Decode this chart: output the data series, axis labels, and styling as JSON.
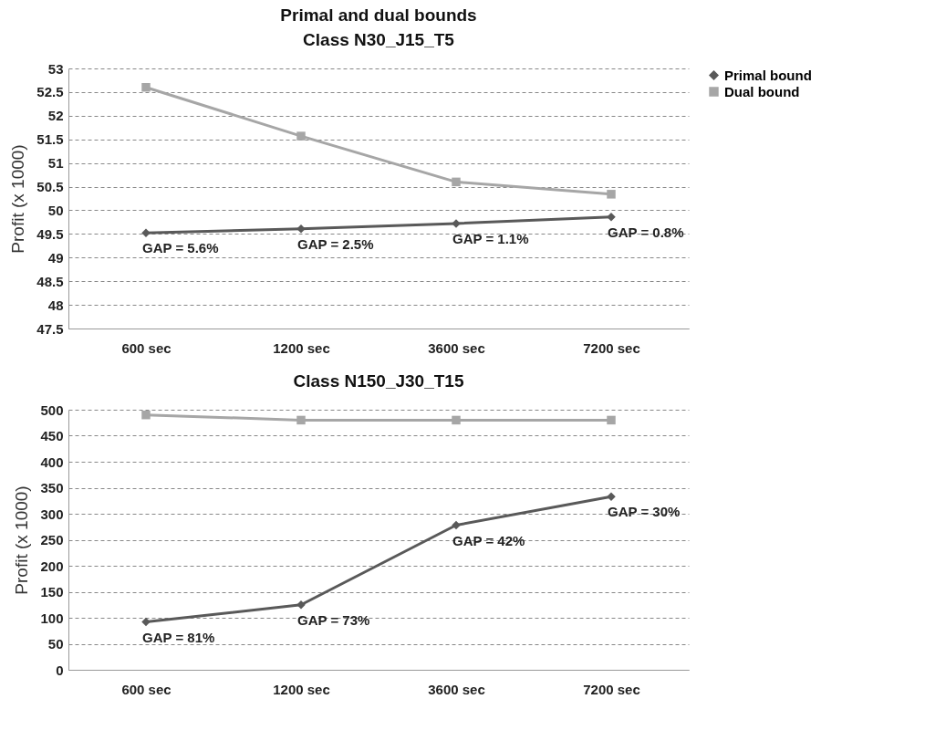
{
  "chart_data": [
    {
      "type": "line",
      "title": "Primal and dual bounds",
      "subtitle": "Class N30_J15_T5",
      "ylabel": "Profit   (x 1000)",
      "categories": [
        "600 sec",
        "1200 sec",
        "3600 sec",
        "7200 sec"
      ],
      "series": [
        {
          "name": "Primal bound",
          "color": "#595959",
          "marker": "diamond",
          "values": [
            49.52,
            49.61,
            49.72,
            49.86
          ]
        },
        {
          "name": "Dual bound",
          "color": "#a6a6a6",
          "marker": "square",
          "values": [
            52.6,
            51.57,
            50.6,
            50.34
          ]
        }
      ],
      "ylim": [
        47.5,
        53
      ],
      "yticks": [
        47.5,
        48,
        48.5,
        49,
        49.5,
        50,
        50.5,
        51,
        51.5,
        52,
        52.5,
        53
      ],
      "grid": "y",
      "legend": "right",
      "line_style": "solid",
      "annotations": [
        {
          "text": "GAP = 5.6%",
          "x": "600 sec",
          "y": 49.52
        },
        {
          "text": "GAP = 2.5%",
          "x": "1200 sec",
          "y": 49.61
        },
        {
          "text": "GAP = 1.1%",
          "x": "3600 sec",
          "y": 49.72
        },
        {
          "text": "GAP = 0.8%",
          "x": "7200 sec",
          "y": 49.86
        }
      ]
    },
    {
      "type": "line",
      "title": "Class N150_J30_T15",
      "ylabel": "Profit   (x 1000)",
      "categories": [
        "600 sec",
        "1200 sec",
        "3600 sec",
        "7200 sec"
      ],
      "series": [
        {
          "color": "#595959",
          "marker": "diamond",
          "values": [
            92,
            125,
            278,
            333
          ]
        },
        {
          "color": "#a6a6a6",
          "marker": "square",
          "values": [
            490,
            480,
            480,
            480
          ]
        }
      ],
      "ylim": [
        0,
        500
      ],
      "yticks": [
        0,
        50,
        100,
        150,
        200,
        250,
        300,
        350,
        400,
        450,
        500
      ],
      "grid": "y",
      "line_style": "solid",
      "annotations": [
        {
          "text": "GAP = 81%",
          "x": "600 sec",
          "y": 92
        },
        {
          "text": "GAP = 73%",
          "x": "1200 sec",
          "y": 125
        },
        {
          "text": "GAP = 42%",
          "x": "3600 sec",
          "y": 278
        },
        {
          "text": "GAP = 30%",
          "x": "7200 sec",
          "y": 333
        }
      ]
    }
  ]
}
